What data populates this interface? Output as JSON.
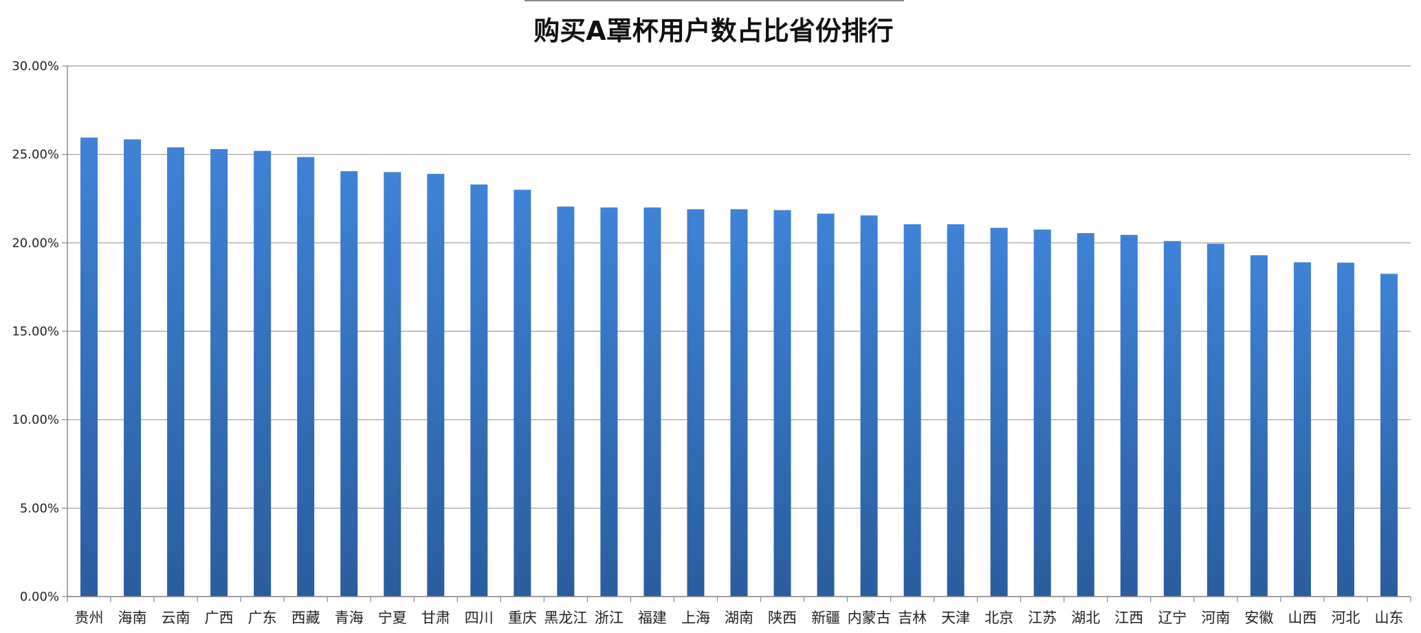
{
  "chart_data": {
    "type": "bar",
    "title": "购买A罩杯用户数占比省份排行",
    "xlabel": "",
    "ylabel": "",
    "ylim": [
      0,
      0.3
    ],
    "y_ticks": [
      {
        "value": 0.0,
        "label": "0.00%"
      },
      {
        "value": 0.05,
        "label": "5.00%"
      },
      {
        "value": 0.1,
        "label": "10.00%"
      },
      {
        "value": 0.15,
        "label": "15.00%"
      },
      {
        "value": 0.2,
        "label": "20.00%"
      },
      {
        "value": 0.25,
        "label": "25.00%"
      },
      {
        "value": 0.3,
        "label": "30.00%"
      }
    ],
    "grid": true,
    "legend": "none",
    "bar_color_top": "#3f82d6",
    "bar_color_bottom": "#2a5d9e",
    "categories": [
      "贵州",
      "海南",
      "云南",
      "广西",
      "广东",
      "西藏",
      "青海",
      "宁夏",
      "甘肃",
      "四川",
      "重庆",
      "黑龙江",
      "浙江",
      "福建",
      "上海",
      "湖南",
      "陕西",
      "新疆",
      "内蒙古",
      "吉林",
      "天津",
      "北京",
      "江苏",
      "湖北",
      "江西",
      "辽宁",
      "河南",
      "安徽",
      "山西",
      "河北",
      "山东"
    ],
    "values": [
      0.2595,
      0.2585,
      0.254,
      0.253,
      0.252,
      0.2485,
      0.2405,
      0.24,
      0.239,
      0.233,
      0.23,
      0.2205,
      0.22,
      0.22,
      0.219,
      0.219,
      0.2185,
      0.2165,
      0.2155,
      0.2105,
      0.2105,
      0.2085,
      0.2075,
      0.2055,
      0.2045,
      0.201,
      0.1995,
      0.193,
      0.189,
      0.1888,
      0.1825
    ]
  }
}
